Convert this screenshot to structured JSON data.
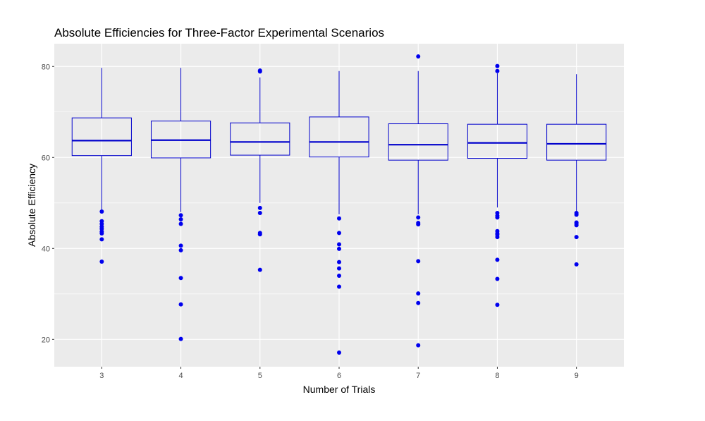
{
  "chart_data": {
    "type": "boxplot",
    "title": "Absolute Efficiencies for Three-Factor Experimental Scenarios",
    "xlabel": "Number of Trials",
    "ylabel": "Absolute Efficiency",
    "categories": [
      "3",
      "4",
      "5",
      "6",
      "7",
      "8",
      "9"
    ],
    "ylim": [
      14,
      85
    ],
    "yticks": [
      20,
      40,
      60,
      80
    ],
    "grid": true,
    "legend": "none",
    "colors": {
      "box": "#0000cc",
      "outlier": "#0000ee",
      "panel": "#ebebeb",
      "grid": "#ffffff"
    },
    "boxes": [
      {
        "category": "3",
        "whisker_low": 48.0,
        "q1": 60.4,
        "median": 63.7,
        "q3": 68.7,
        "whisker_high": 79.7,
        "outliers": [
          48.1,
          46.0,
          45.4,
          44.8,
          44.3,
          43.7,
          43.3,
          42.0,
          37.1
        ]
      },
      {
        "category": "4",
        "whisker_low": 48.0,
        "q1": 59.9,
        "median": 63.8,
        "q3": 68.0,
        "whisker_high": 79.7,
        "outliers": [
          47.3,
          46.4,
          45.4,
          40.6,
          39.6,
          33.5,
          27.7,
          20.1
        ]
      },
      {
        "category": "5",
        "whisker_low": 50.0,
        "q1": 60.5,
        "median": 63.4,
        "q3": 67.6,
        "whisker_high": 77.6,
        "outliers": [
          79.1,
          78.9,
          48.9,
          47.8,
          43.4,
          43.1,
          35.3
        ]
      },
      {
        "category": "6",
        "whisker_low": 47.5,
        "q1": 60.1,
        "median": 63.4,
        "q3": 68.9,
        "whisker_high": 79.0,
        "outliers": [
          46.6,
          43.4,
          40.9,
          39.9,
          37.0,
          35.6,
          34.0,
          31.6,
          17.1
        ]
      },
      {
        "category": "7",
        "whisker_low": 47.5,
        "q1": 59.4,
        "median": 62.8,
        "q3": 67.4,
        "whisker_high": 79.0,
        "outliers": [
          82.2,
          46.8,
          45.6,
          45.3,
          37.2,
          30.1,
          28.0,
          18.7
        ]
      },
      {
        "category": "8",
        "whisker_low": 49.0,
        "q1": 59.8,
        "median": 63.2,
        "q3": 67.3,
        "whisker_high": 78.5,
        "outliers": [
          80.1,
          79.0,
          47.8,
          47.2,
          46.8,
          43.8,
          43.3,
          43.0,
          42.5,
          37.5,
          33.3,
          27.6
        ]
      },
      {
        "category": "9",
        "whisker_low": 48.0,
        "q1": 59.4,
        "median": 63.0,
        "q3": 67.3,
        "whisker_high": 78.3,
        "outliers": [
          47.8,
          47.4,
          45.7,
          45.4,
          45.1,
          42.5,
          36.5
        ]
      }
    ]
  }
}
